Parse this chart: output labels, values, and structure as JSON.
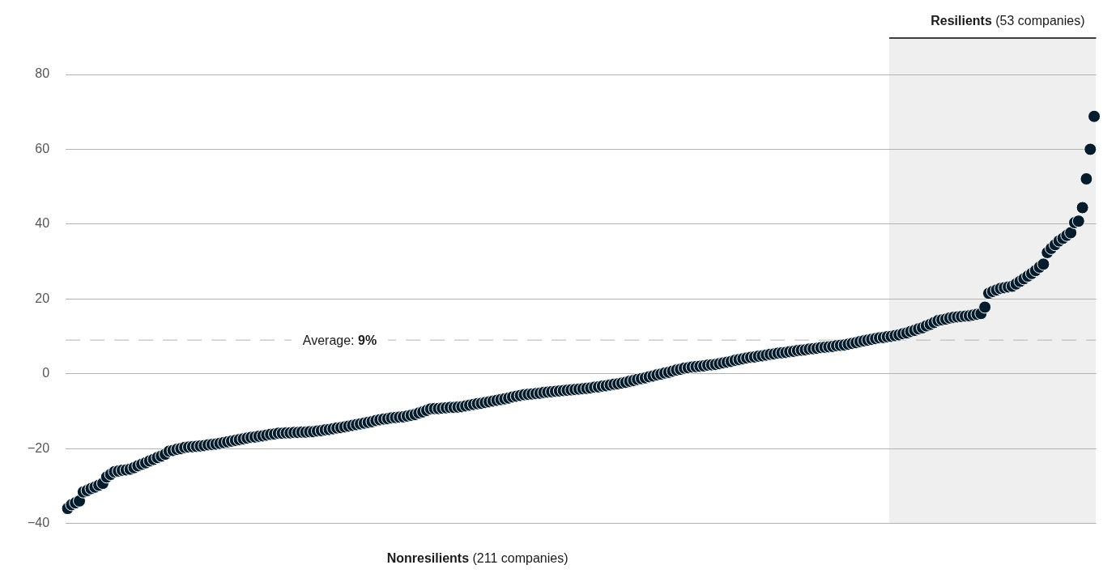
{
  "chart_data": {
    "type": "scatter",
    "xlabel": "Nonresilients (211 companies)",
    "categories": [
      null,
      null,
      null,
      null,
      null,
      null,
      null,
      null,
      null,
      null,
      null,
      null,
      null,
      null,
      null,
      null,
      null,
      null,
      null,
      null,
      null,
      null,
      null,
      null,
      null,
      null,
      null,
      null,
      null,
      null,
      null,
      null,
      null,
      null,
      null,
      null,
      null,
      null,
      null,
      null,
      null,
      null,
      null,
      null,
      null,
      null,
      null,
      null,
      null,
      null,
      null,
      null,
      null,
      null,
      null,
      null,
      null,
      null,
      null,
      null,
      null,
      null,
      null,
      null,
      null,
      null,
      null,
      null,
      null,
      null,
      null,
      null,
      null,
      null,
      null,
      null,
      null,
      null,
      null,
      null,
      null,
      null,
      null,
      null,
      null,
      null,
      null,
      null,
      null,
      null,
      null,
      null,
      null,
      null,
      null,
      null,
      null,
      null,
      null,
      null,
      null,
      null,
      null,
      null,
      null,
      null,
      null,
      null,
      null,
      null,
      null,
      null,
      null,
      null,
      null,
      null,
      null,
      null,
      null,
      null,
      null,
      null,
      null,
      null,
      null,
      null,
      null,
      null,
      null,
      null,
      null,
      null,
      null,
      null,
      null,
      null,
      null,
      null,
      null,
      null,
      null,
      null,
      null,
      null,
      null,
      null,
      null,
      null,
      null,
      null,
      null,
      null,
      null,
      null,
      null,
      null,
      null,
      null,
      null,
      null,
      null,
      null,
      null,
      null,
      null,
      null,
      null,
      null,
      null,
      null,
      null,
      null,
      null,
      null,
      null,
      null,
      null,
      null,
      null,
      null,
      null,
      null,
      null,
      null,
      null,
      null,
      null,
      null,
      null,
      null,
      null,
      null,
      null,
      null,
      null,
      null,
      null,
      null,
      null,
      null,
      null,
      null,
      null,
      null,
      null,
      null,
      null,
      null,
      null,
      null,
      null,
      null,
      null,
      null,
      null,
      null,
      null,
      null,
      null,
      null,
      null,
      null,
      null,
      null,
      null,
      null,
      null,
      null,
      null,
      null,
      null,
      null,
      null,
      null,
      null,
      null,
      null,
      null,
      null,
      null,
      null,
      null,
      null,
      null,
      null,
      null,
      null,
      null,
      null,
      null,
      null,
      null,
      null,
      null,
      null,
      null,
      null,
      null,
      null,
      null,
      null,
      null,
      null,
      null
    ],
    "series": [
      {
        "color": "#051c2c",
        "values": [
          -36,
          -35,
          -34.5,
          -34,
          -31.6,
          -31.2,
          -30.7,
          -30.3,
          -29.8,
          -29.3,
          -27.6,
          -26.9,
          -26.2,
          -26.0,
          -25.8,
          -25.7,
          -25.5,
          -25.1,
          -24.6,
          -24.2,
          -23.8,
          -23.3,
          -22.9,
          -22.4,
          -22.0,
          -21.5,
          -20.7,
          -20.5,
          -20.2,
          -20.0,
          -19.7,
          -19.6,
          -19.5,
          -19.4,
          -19.3,
          -19.2,
          -19.0,
          -18.9,
          -18.8,
          -18.6,
          -18.4,
          -18.2,
          -18.0,
          -17.8,
          -17.6,
          -17.4,
          -17.2,
          -17.0,
          -16.9,
          -16.7,
          -16.6,
          -16.4,
          -16.2,
          -16.1,
          -15.9,
          -15.9,
          -15.8,
          -15.8,
          -15.7,
          -15.7,
          -15.6,
          -15.6,
          -15.5,
          -15.5,
          -15.3,
          -15.2,
          -15.0,
          -14.9,
          -14.7,
          -14.5,
          -14.4,
          -14.2,
          -14.0,
          -13.8,
          -13.6,
          -13.4,
          -13.2,
          -13,
          -12.8,
          -12.5,
          -12.3,
          -12.1,
          -12.0,
          -11.8,
          -11.7,
          -11.6,
          -11.5,
          -11.3,
          -11.1,
          -10.9,
          -10.5,
          -10.2,
          -9.8,
          -9.4,
          -9.3,
          -9.3,
          -9.2,
          -9.1,
          -9.0,
          -9.0,
          -8.9,
          -8.8,
          -8.6,
          -8.4,
          -8.2,
          -8.0,
          -7.9,
          -7.7,
          -7.5,
          -7.3,
          -7.1,
          -6.9,
          -6.7,
          -6.5,
          -6.2,
          -6.0,
          -5.8,
          -5.6,
          -5.5,
          -5.4,
          -5.3,
          -5.2,
          -5.0,
          -4.9,
          -4.8,
          -4.7,
          -4.6,
          -4.5,
          -4.4,
          -4.3,
          -4.2,
          -4.1,
          -4.0,
          -3.9,
          -3.8,
          -3.6,
          -3.5,
          -3.3,
          -3.2,
          -3.0,
          -2.8,
          -2.7,
          -2.5,
          -2.3,
          -2.0,
          -1.8,
          -1.5,
          -1.3,
          -1.1,
          -0.8,
          -0.6,
          -0.3,
          -0.1,
          0.2,
          0.4,
          0.7,
          1.0,
          1.2,
          1.5,
          1.6,
          1.8,
          1.9,
          2.0,
          2.1,
          2.3,
          2.4,
          2.5,
          2.7,
          2.9,
          3.1,
          3.3,
          3.6,
          3.8,
          4.0,
          4.2,
          4.4,
          4.5,
          4.7,
          4.8,
          5.0,
          5.2,
          5.3,
          5.5,
          5.6,
          5.7,
          5.9,
          6.0,
          6.2,
          6.3,
          6.4,
          6.6,
          6.7,
          6.8,
          7.0,
          7.1,
          7.2,
          7.3,
          7.5,
          7.6,
          7.7,
          7.9,
          8.1,
          8.3,
          8.6,
          8.8,
          9.0,
          9.2,
          9.4,
          9.6,
          9.7,
          9.9,
          10,
          10.2,
          10.4,
          10.7,
          10.9,
          11.3,
          11.6,
          12.0,
          12.3,
          12.8,
          13.2,
          13.7,
          14.2,
          14.4,
          14.6,
          14.9,
          15.1,
          15.2,
          15.3,
          15.4,
          15.5,
          15.7,
          15.9,
          16.1,
          17.8,
          21.5,
          22.0,
          22.4,
          22.8,
          23.0,
          23.2,
          23.4,
          24.0,
          24.7,
          25.4,
          26.1,
          26.8,
          27.6,
          28.5,
          29.3,
          32.4,
          33.5,
          34.5,
          35.5,
          36.2,
          37,
          37.7,
          40.4,
          40.8,
          44.4,
          52.1,
          60,
          68.8
        ]
      }
    ],
    "ylim": [
      -40,
      80
    ],
    "annotations": [
      "Resilients (53 companies)"
    ],
    "yticks": [
      {
        "value": -40,
        "label": "−40"
      },
      {
        "value": -20,
        "label": "−20"
      },
      0,
      20,
      40,
      60,
      80
    ],
    "grid": "y",
    "marker": "circle",
    "ref_lines": [
      {
        "axis": "y",
        "value": 9,
        "label": "Average: 9%",
        "color": "#b3b3b3",
        "line_style": "dashed"
      }
    ]
  }
}
